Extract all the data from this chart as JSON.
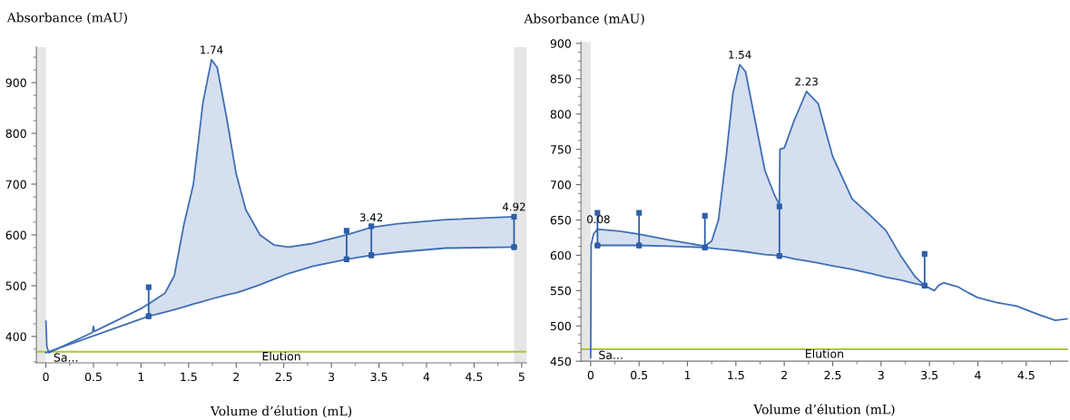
{
  "chart_data": [
    {
      "type": "line",
      "xlabel": "Volume d’élution (mL)",
      "ylabel": "Absorbance (mAU)",
      "xlim": [
        -0.1,
        5.05
      ],
      "ylim": [
        348,
        970
      ],
      "xticks": [
        0,
        0.5,
        1,
        1.5,
        2,
        2.5,
        3,
        3.5,
        4,
        4.5,
        5
      ],
      "yticks": [
        400,
        500,
        600,
        700,
        800,
        900
      ],
      "legend": false,
      "series": [
        {
          "color": "#3f6fb5",
          "x": [
            0,
            0.01,
            0.03,
            0.49,
            0.5,
            0.51,
            1.0,
            1.08,
            1.25,
            1.35,
            1.45,
            1.55,
            1.65,
            1.74,
            1.8,
            1.9,
            2.0,
            2.1,
            2.25,
            2.4,
            2.55,
            2.8,
            3.16,
            3.42,
            3.7,
            4.2,
            4.92
          ],
          "values": [
            430,
            380,
            368,
            408,
            420,
            410,
            455,
            464,
            485,
            520,
            620,
            700,
            860,
            945,
            930,
            830,
            720,
            650,
            600,
            580,
            576,
            583,
            600,
            615,
            622,
            630,
            636
          ],
          "lower": [
            null,
            null,
            null,
            null,
            null,
            null,
            null,
            440,
            448,
            453,
            458,
            464,
            469,
            474,
            477,
            482,
            486,
            492,
            502,
            513,
            524,
            538,
            552,
            560,
            566,
            574,
            576
          ],
          "upper": [
            null,
            null,
            null,
            null,
            null,
            null,
            null,
            464,
            485,
            520,
            620,
            700,
            860,
            945,
            930,
            830,
            720,
            650,
            600,
            580,
            576,
            583,
            600,
            615,
            622,
            630,
            636
          ]
        },
        {
          "color": "#3f6fb5",
          "x": [
            0,
            1.08,
            1.25,
            1.35,
            1.45,
            1.55,
            1.65,
            1.74,
            1.8,
            1.9,
            2.0,
            2.1,
            2.25,
            2.4,
            2.55,
            2.8,
            3.16,
            3.42,
            3.7,
            4.2,
            4.92
          ],
          "values": [
            368,
            440,
            448,
            453,
            458,
            464,
            469,
            474,
            477,
            482,
            486,
            492,
            502,
            513,
            524,
            538,
            552,
            560,
            566,
            574,
            576
          ]
        },
        {
          "type": "scatter",
          "color": "#2e5fa8",
          "x": [
            1.08,
            3.16,
            3.42,
            4.92
          ],
          "values": [
            440,
            552,
            560,
            576
          ],
          "errors": [
            [
              440,
              497
            ],
            [
              552,
              608
            ],
            [
              560,
              617
            ],
            [
              576,
              636
            ]
          ]
        }
      ],
      "ref_lines": [
        {
          "axis": "y",
          "value": 370,
          "label": "Elution",
          "color": "#a8c93a"
        }
      ],
      "bands": [
        {
          "axis": "x",
          "from": -0.1,
          "to": 0,
          "color": "#e6e6e6"
        },
        {
          "axis": "x",
          "from": 4.92,
          "to": 5.05,
          "color": "#e6e6e6"
        }
      ],
      "annotations": [
        {
          "text": "1.74",
          "x": 1.74,
          "y": 945
        },
        {
          "text": "3.42",
          "x": 3.42,
          "y": 615
        },
        {
          "text": "4.92",
          "x": 4.92,
          "y": 636
        },
        {
          "text": "Sa...",
          "x": 0.08,
          "y": 370
        }
      ]
    },
    {
      "type": "line",
      "xlabel": "Volume d’élution (mL)",
      "ylabel": "Absorbance (mAU)",
      "xlim": [
        -0.1,
        4.93
      ],
      "ylim": [
        450,
        902
      ],
      "xticks": [
        0,
        0.5,
        1,
        1.5,
        2,
        2.5,
        3,
        3.5,
        4,
        4.5
      ],
      "yticks": [
        450,
        500,
        550,
        600,
        650,
        700,
        750,
        800,
        850,
        900
      ],
      "legend": false,
      "series": [
        {
          "color": "#3f6fb5",
          "x": [
            0,
            0.005,
            0.03,
            0.07,
            0.3,
            0.5,
            0.8,
            1.18,
            1.25,
            1.32,
            1.4,
            1.47,
            1.54,
            1.6,
            1.7,
            1.8,
            1.9,
            1.95,
            1.955,
            2.0,
            2.1,
            2.23,
            2.35,
            2.5,
            2.7,
            2.9,
            3.05,
            3.2,
            3.35,
            3.45,
            3.55,
            3.6,
            3.65,
            3.8,
            3.9,
            4.0,
            4.2,
            4.4,
            4.55,
            4.65,
            4.8,
            4.93
          ],
          "values": [
            455,
            615,
            630,
            637,
            634,
            630,
            622,
            613,
            620,
            650,
            740,
            830,
            870,
            860,
            790,
            720,
            685,
            672,
            750,
            752,
            790,
            832,
            815,
            740,
            680,
            655,
            635,
            600,
            570,
            557,
            550,
            558,
            561,
            555,
            547,
            540,
            533,
            528,
            520,
            515,
            508,
            510
          ],
          "lower": [
            null,
            null,
            null,
            614,
            614,
            614,
            613,
            611,
            610,
            609,
            608,
            607,
            606,
            605,
            603,
            601,
            600,
            599,
            599,
            598,
            595,
            592,
            589,
            585,
            580,
            574,
            569,
            565,
            560,
            557,
            null,
            null,
            null,
            null,
            null,
            null,
            null,
            null,
            null,
            null,
            null,
            null
          ],
          "upper": [
            null,
            null,
            null,
            637,
            634,
            630,
            622,
            613,
            620,
            650,
            740,
            830,
            870,
            860,
            790,
            720,
            685,
            672,
            750,
            752,
            790,
            832,
            815,
            740,
            680,
            655,
            635,
            600,
            570,
            557,
            null,
            null,
            null,
            null,
            null,
            null,
            null,
            null,
            null,
            null,
            null,
            null
          ]
        },
        {
          "color": "#3f6fb5",
          "x": [
            0.07,
            0.3,
            0.5,
            0.8,
            1.18,
            1.25,
            1.32,
            1.4,
            1.47,
            1.54,
            1.6,
            1.7,
            1.8,
            1.9,
            1.95,
            2.0,
            2.1,
            2.23,
            2.35,
            2.5,
            2.7,
            2.9,
            3.05,
            3.2,
            3.35,
            3.45
          ],
          "values": [
            614,
            614,
            614,
            613,
            611,
            610,
            609,
            608,
            607,
            606,
            605,
            603,
            601,
            600,
            599,
            598,
            595,
            592,
            589,
            585,
            580,
            574,
            569,
            565,
            560,
            557
          ]
        },
        {
          "type": "scatter",
          "color": "#2e5fa8",
          "x": [
            0.07,
            0.5,
            1.18,
            1.95,
            3.45
          ],
          "values": [
            614,
            614,
            611,
            599,
            557
          ],
          "errors": [
            [
              614,
              660
            ],
            [
              614,
              660
            ],
            [
              611,
              656
            ],
            [
              599,
              669
            ],
            [
              557,
              602
            ]
          ]
        }
      ],
      "ref_lines": [
        {
          "axis": "y",
          "value": 467,
          "label": "Elution",
          "color": "#a8c93a"
        }
      ],
      "bands": [
        {
          "axis": "x",
          "from": -0.1,
          "to": 0,
          "color": "#e6e6e6"
        }
      ],
      "annotations": [
        {
          "text": "0.08",
          "x": 0.08,
          "y": 637
        },
        {
          "text": "1.54",
          "x": 1.54,
          "y": 870
        },
        {
          "text": "2.23",
          "x": 2.23,
          "y": 832
        },
        {
          "text": "Sa...",
          "x": 0.08,
          "y": 467
        }
      ]
    }
  ]
}
